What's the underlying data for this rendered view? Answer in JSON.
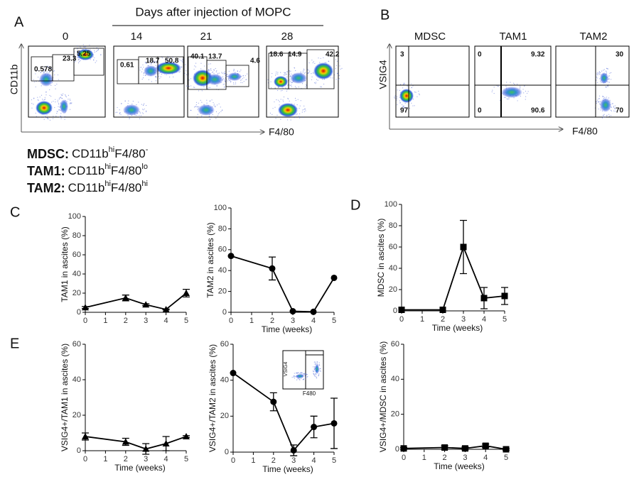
{
  "panel_labels": {
    "a": "A",
    "b": "B",
    "c": "C",
    "d": "D",
    "e": "E"
  },
  "panel_a": {
    "title": "Days after injection of MOPC",
    "y_axis": "CD11b",
    "x_axis": "F4/80",
    "plots": [
      {
        "day": "0",
        "gates": [
          "5.25",
          "23.3",
          "0.578"
        ]
      },
      {
        "day": "14",
        "gates": [
          "0.61",
          "18.7",
          "50.8"
        ]
      },
      {
        "day": "21",
        "gates": [
          "40.1",
          "13.7",
          "4.6"
        ]
      },
      {
        "day": "28",
        "gates": [
          "18.6",
          "14.9",
          "42.2"
        ]
      }
    ]
  },
  "panel_b": {
    "y_axis": "VSIG4",
    "x_axis": "F4/80",
    "plots": [
      {
        "title": "MDSC",
        "quadrants": [
          "3",
          "97"
        ]
      },
      {
        "title": "TAM1",
        "quadrants": [
          "0",
          "9.32",
          "0",
          "90.6"
        ]
      },
      {
        "title": "TAM2",
        "quadrants": [
          "30",
          "70"
        ]
      }
    ]
  },
  "definitions": [
    {
      "name": "MDSC:",
      "marker": "CD11b",
      "marker_sup": "hi",
      "gate": "F4/80",
      "gate_sup": "-"
    },
    {
      "name": "TAM1:",
      "marker": "CD11b",
      "marker_sup": "hi",
      "gate": "F4/80",
      "gate_sup": "lo"
    },
    {
      "name": "TAM2:",
      "marker": "CD11b",
      "marker_sup": "hi",
      "gate": "F4/80",
      "gate_sup": "hi"
    }
  ],
  "inset": {
    "y_axis": "VSIG4",
    "x_axis": "F480"
  },
  "chart_data": [
    {
      "type": "line",
      "y_label": "TAM1 in ascites (%)",
      "x": [
        0,
        2,
        3,
        4,
        5
      ],
      "xlim": [
        0,
        5
      ],
      "xticks": [
        0,
        1,
        2,
        3,
        4,
        5
      ],
      "ylim": [
        0,
        100
      ],
      "yticks": [
        0,
        20,
        40,
        60,
        80,
        100
      ],
      "series": [
        {
          "marker": "triangle",
          "color": "#000000",
          "values": [
            5,
            15,
            8,
            3,
            20
          ],
          "errors": [
            1,
            3,
            1,
            0.5,
            4
          ]
        }
      ]
    },
    {
      "type": "line",
      "y_label": "TAM2 in ascites (%)",
      "x_label": "Time (weeks)",
      "x": [
        0,
        2,
        3,
        4,
        5
      ],
      "xlim": [
        0,
        5
      ],
      "xticks": [
        0,
        1,
        2,
        3,
        4,
        5
      ],
      "ylim": [
        0,
        100
      ],
      "yticks": [
        0,
        20,
        40,
        60,
        80,
        100
      ],
      "series": [
        {
          "marker": "circle",
          "color": "#000000",
          "values": [
            54,
            42,
            1,
            0.5,
            33
          ],
          "errors": [
            0,
            11,
            0,
            0,
            0
          ]
        }
      ]
    },
    {
      "type": "line",
      "y_label": "MDSC in ascites (%)",
      "x_label": "Time (weeks)",
      "x": [
        0,
        2,
        3,
        4,
        5
      ],
      "xlim": [
        0,
        5
      ],
      "xticks": [
        0,
        1,
        2,
        3,
        4,
        5
      ],
      "ylim": [
        0,
        100
      ],
      "yticks": [
        0,
        20,
        40,
        60,
        80,
        100
      ],
      "series": [
        {
          "marker": "square",
          "color": "#000000",
          "values": [
            1,
            1,
            60,
            12,
            14
          ],
          "errors": [
            0,
            0,
            25,
            10,
            8
          ]
        }
      ]
    },
    {
      "type": "line",
      "y_label": "VSIG4+/TAM1  in ascites (%)",
      "x_label": "Time (weeks)",
      "x": [
        0,
        2,
        3,
        4,
        5
      ],
      "xlim": [
        0,
        5
      ],
      "xticks": [
        0,
        1,
        2,
        3,
        4,
        5
      ],
      "ylim": [
        0,
        60
      ],
      "yticks": [
        0,
        20,
        40,
        60
      ],
      "series": [
        {
          "marker": "triangle",
          "color": "#000000",
          "values": [
            8,
            5,
            1,
            4,
            8
          ],
          "errors": [
            2,
            2,
            3,
            4,
            0.5
          ]
        }
      ]
    },
    {
      "type": "line",
      "y_label": "VSIG4+/TAM2 in ascites (%)",
      "x_label": "Time (weeks)",
      "x": [
        0,
        2,
        3,
        4,
        5
      ],
      "xlim": [
        0,
        5
      ],
      "xticks": [
        0,
        1,
        2,
        3,
        4,
        5
      ],
      "ylim": [
        0,
        60
      ],
      "yticks": [
        0,
        20,
        40,
        60
      ],
      "series": [
        {
          "marker": "circle",
          "color": "#000000",
          "values": [
            44,
            28,
            1,
            14,
            16
          ],
          "errors": [
            0,
            5,
            3,
            6,
            14
          ]
        }
      ]
    },
    {
      "type": "line",
      "y_label": "VSIG4+/MDSC in ascites (%)",
      "x_label": "Time (weeks)",
      "x": [
        0,
        2,
        3,
        4,
        5
      ],
      "xlim": [
        0,
        5
      ],
      "xticks": [
        0,
        1,
        2,
        3,
        4,
        5
      ],
      "ylim": [
        0,
        60
      ],
      "yticks": [
        0,
        20,
        40,
        60
      ],
      "series": [
        {
          "marker": "square",
          "color": "#000000",
          "values": [
            0.5,
            1,
            0.5,
            2,
            0
          ],
          "errors": [
            0.5,
            1,
            0.8,
            1,
            0.5
          ]
        }
      ]
    }
  ]
}
